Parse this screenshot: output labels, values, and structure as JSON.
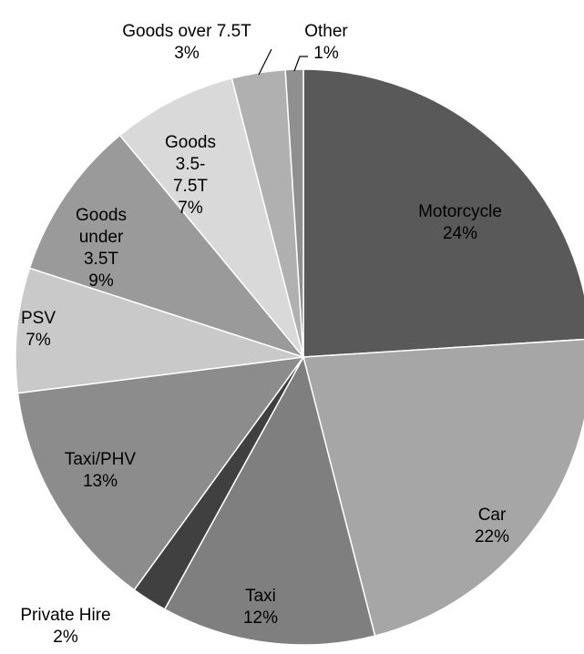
{
  "chart_data": {
    "type": "pie",
    "categories": [
      "Motorcycle",
      "Car",
      "Taxi",
      "Private Hire",
      "Taxi/PHV",
      "PSV",
      "Goods under 3.5T",
      "Goods 3.5-7.5T",
      "Goods over 7.5T",
      "Other"
    ],
    "values": [
      24,
      22,
      12,
      2,
      13,
      7,
      9,
      7,
      3,
      1
    ],
    "value_labels": [
      "24%",
      "22%",
      "12%",
      "2%",
      "13%",
      "7%",
      "9%",
      "7%",
      "3%",
      "1%"
    ],
    "colors": [
      "#595959",
      "#a6a6a6",
      "#7f7f7f",
      "#404040",
      "#8c8c8c",
      "#c9c9c9",
      "#9a9a9a",
      "#d9d9d9",
      "#b0b0b0",
      "#8f8f8f"
    ]
  }
}
